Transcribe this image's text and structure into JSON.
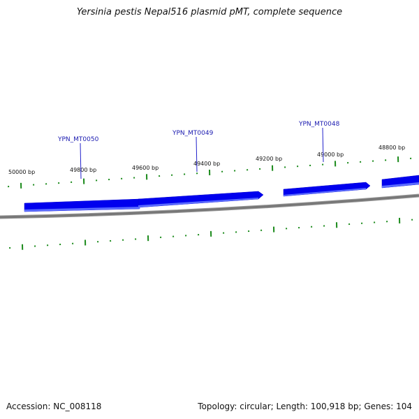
{
  "title": "Yersinia pestis Nepal516 plasmid pMT, complete sequence",
  "footer": {
    "accession": "Accession: NC_008118",
    "summary": "Topology: circular; Length: 100,918 bp; Genes: 104"
  },
  "colors": {
    "backbone": "#777777",
    "gene_arrow": "#0000ee",
    "gene_arrow_light": "#5a6bff",
    "tick": "#1a8a1a",
    "label_line": "#2222cc",
    "gene_label": "#1a1ab0"
  },
  "chart_data": {
    "type": "genome-map",
    "position_labels": [
      "50000 bp",
      "49800 bp",
      "49600 bp",
      "49400 bp",
      "49200 bp",
      "49000 bp",
      "48800 bp"
    ],
    "genes": [
      {
        "name": "YPN_MT0050"
      },
      {
        "name": "YPN_MT0049"
      },
      {
        "name": "YPN_MT0048"
      }
    ]
  }
}
